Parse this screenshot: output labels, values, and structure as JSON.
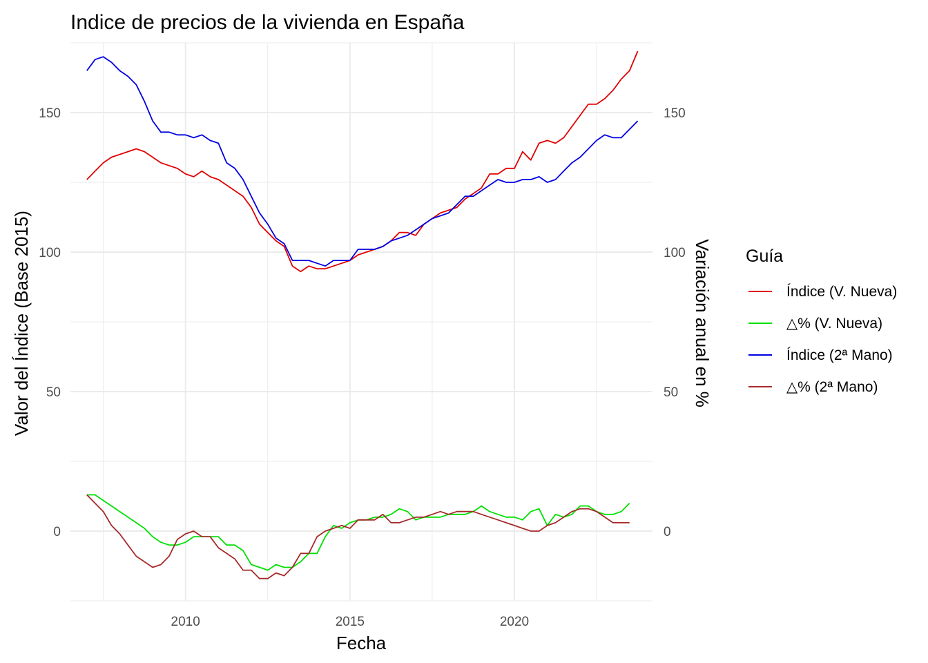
{
  "chart_data": {
    "type": "line",
    "title": "Indice de precios de la vivienda en España",
    "xlabel": "Fecha",
    "ylabel": "Valor del Índice (Base 2015)",
    "y2label": "Variación anual en %",
    "xlim": [
      2006.5,
      2024.2
    ],
    "ylim": [
      -25,
      175
    ],
    "x_ticks": [
      2010,
      2015,
      2020
    ],
    "y_ticks": [
      0,
      50,
      100,
      150
    ],
    "y2_ticks": [
      0,
      50,
      100,
      150
    ],
    "grid": true,
    "legend": {
      "title": "Guía",
      "position": "right"
    },
    "series": [
      {
        "name": "Índice (V. Nueva)",
        "color": "#e00000",
        "points": [
          [
            2007.0,
            126
          ],
          [
            2007.25,
            129
          ],
          [
            2007.5,
            132
          ],
          [
            2007.75,
            134
          ],
          [
            2008.0,
            135
          ],
          [
            2008.25,
            136
          ],
          [
            2008.5,
            137
          ],
          [
            2008.75,
            136
          ],
          [
            2009.0,
            134
          ],
          [
            2009.25,
            132
          ],
          [
            2009.5,
            131
          ],
          [
            2009.75,
            130
          ],
          [
            2010.0,
            128
          ],
          [
            2010.25,
            127
          ],
          [
            2010.5,
            129
          ],
          [
            2010.75,
            127
          ],
          [
            2011.0,
            126
          ],
          [
            2011.25,
            124
          ],
          [
            2011.5,
            122
          ],
          [
            2011.75,
            120
          ],
          [
            2012.0,
            116
          ],
          [
            2012.25,
            110
          ],
          [
            2012.5,
            107
          ],
          [
            2012.75,
            104
          ],
          [
            2013.0,
            102
          ],
          [
            2013.25,
            95
          ],
          [
            2013.5,
            93
          ],
          [
            2013.75,
            95
          ],
          [
            2014.0,
            94
          ],
          [
            2014.25,
            94
          ],
          [
            2014.5,
            95
          ],
          [
            2014.75,
            96
          ],
          [
            2015.0,
            97
          ],
          [
            2015.25,
            99
          ],
          [
            2015.5,
            100
          ],
          [
            2015.75,
            101
          ],
          [
            2016.0,
            102
          ],
          [
            2016.25,
            104
          ],
          [
            2016.5,
            107
          ],
          [
            2016.75,
            107
          ],
          [
            2017.0,
            106
          ],
          [
            2017.25,
            110
          ],
          [
            2017.5,
            112
          ],
          [
            2017.75,
            114
          ],
          [
            2018.0,
            115
          ],
          [
            2018.25,
            116
          ],
          [
            2018.5,
            119
          ],
          [
            2018.75,
            121
          ],
          [
            2019.0,
            123
          ],
          [
            2019.25,
            128
          ],
          [
            2019.5,
            128
          ],
          [
            2019.75,
            130
          ],
          [
            2020.0,
            130
          ],
          [
            2020.25,
            136
          ],
          [
            2020.5,
            133
          ],
          [
            2020.75,
            139
          ],
          [
            2021.0,
            140
          ],
          [
            2021.25,
            139
          ],
          [
            2021.5,
            141
          ],
          [
            2021.75,
            145
          ],
          [
            2022.0,
            149
          ],
          [
            2022.25,
            153
          ],
          [
            2022.5,
            153
          ],
          [
            2022.75,
            155
          ],
          [
            2023.0,
            158
          ],
          [
            2023.25,
            162
          ],
          [
            2023.5,
            165
          ],
          [
            2023.75,
            172
          ]
        ]
      },
      {
        "name": "△% (V. Nueva)",
        "color": "#00e000",
        "points": [
          [
            2007.0,
            13
          ],
          [
            2007.25,
            13
          ],
          [
            2007.5,
            11
          ],
          [
            2007.75,
            9
          ],
          [
            2008.0,
            7
          ],
          [
            2008.25,
            5
          ],
          [
            2008.5,
            3
          ],
          [
            2008.75,
            1
          ],
          [
            2009.0,
            -2
          ],
          [
            2009.25,
            -4
          ],
          [
            2009.5,
            -5
          ],
          [
            2009.75,
            -5
          ],
          [
            2010.0,
            -4
          ],
          [
            2010.25,
            -2
          ],
          [
            2010.5,
            -2
          ],
          [
            2010.75,
            -2
          ],
          [
            2011.0,
            -2
          ],
          [
            2011.25,
            -5
          ],
          [
            2011.5,
            -5
          ],
          [
            2011.75,
            -7
          ],
          [
            2012.0,
            -12
          ],
          [
            2012.25,
            -13
          ],
          [
            2012.5,
            -14
          ],
          [
            2012.75,
            -12
          ],
          [
            2013.0,
            -13
          ],
          [
            2013.25,
            -13
          ],
          [
            2013.5,
            -11
          ],
          [
            2013.75,
            -8
          ],
          [
            2014.0,
            -8
          ],
          [
            2014.25,
            -2
          ],
          [
            2014.5,
            2
          ],
          [
            2014.75,
            1
          ],
          [
            2015.0,
            3
          ],
          [
            2015.25,
            4
          ],
          [
            2015.5,
            4
          ],
          [
            2015.75,
            5
          ],
          [
            2016.0,
            5
          ],
          [
            2016.25,
            6
          ],
          [
            2016.5,
            8
          ],
          [
            2016.75,
            7
          ],
          [
            2017.0,
            4
          ],
          [
            2017.25,
            5
          ],
          [
            2017.5,
            5
          ],
          [
            2017.75,
            5
          ],
          [
            2018.0,
            6
          ],
          [
            2018.25,
            6
          ],
          [
            2018.5,
            6
          ],
          [
            2018.75,
            7
          ],
          [
            2019.0,
            9
          ],
          [
            2019.25,
            7
          ],
          [
            2019.5,
            6
          ],
          [
            2019.75,
            5
          ],
          [
            2020.0,
            5
          ],
          [
            2020.25,
            4
          ],
          [
            2020.5,
            7
          ],
          [
            2020.75,
            8
          ],
          [
            2021.0,
            2
          ],
          [
            2021.25,
            6
          ],
          [
            2021.5,
            5
          ],
          [
            2021.75,
            6
          ],
          [
            2022.0,
            9
          ],
          [
            2022.25,
            9
          ],
          [
            2022.5,
            7
          ],
          [
            2022.75,
            6
          ],
          [
            2023.0,
            6
          ],
          [
            2023.25,
            7
          ],
          [
            2023.5,
            10
          ]
        ]
      },
      {
        "name": "Índice (2ª Mano)",
        "color": "#0000e0",
        "points": [
          [
            2007.0,
            165
          ],
          [
            2007.25,
            169
          ],
          [
            2007.5,
            170
          ],
          [
            2007.75,
            168
          ],
          [
            2008.0,
            165
          ],
          [
            2008.25,
            163
          ],
          [
            2008.5,
            160
          ],
          [
            2008.75,
            154
          ],
          [
            2009.0,
            147
          ],
          [
            2009.25,
            143
          ],
          [
            2009.5,
            143
          ],
          [
            2009.75,
            142
          ],
          [
            2010.0,
            142
          ],
          [
            2010.25,
            141
          ],
          [
            2010.5,
            142
          ],
          [
            2010.75,
            140
          ],
          [
            2011.0,
            139
          ],
          [
            2011.25,
            132
          ],
          [
            2011.5,
            130
          ],
          [
            2011.75,
            126
          ],
          [
            2012.0,
            120
          ],
          [
            2012.25,
            114
          ],
          [
            2012.5,
            110
          ],
          [
            2012.75,
            105
          ],
          [
            2013.0,
            103
          ],
          [
            2013.25,
            97
          ],
          [
            2013.5,
            97
          ],
          [
            2013.75,
            97
          ],
          [
            2014.0,
            96
          ],
          [
            2014.25,
            95
          ],
          [
            2014.5,
            97
          ],
          [
            2014.75,
            97
          ],
          [
            2015.0,
            97
          ],
          [
            2015.25,
            101
          ],
          [
            2015.5,
            101
          ],
          [
            2015.75,
            101
          ],
          [
            2016.0,
            102
          ],
          [
            2016.25,
            104
          ],
          [
            2016.5,
            105
          ],
          [
            2016.75,
            106
          ],
          [
            2017.0,
            108
          ],
          [
            2017.25,
            110
          ],
          [
            2017.5,
            112
          ],
          [
            2017.75,
            113
          ],
          [
            2018.0,
            114
          ],
          [
            2018.25,
            117
          ],
          [
            2018.5,
            120
          ],
          [
            2018.75,
            120
          ],
          [
            2019.0,
            122
          ],
          [
            2019.25,
            124
          ],
          [
            2019.5,
            126
          ],
          [
            2019.75,
            125
          ],
          [
            2020.0,
            125
          ],
          [
            2020.25,
            126
          ],
          [
            2020.5,
            126
          ],
          [
            2020.75,
            127
          ],
          [
            2021.0,
            125
          ],
          [
            2021.25,
            126
          ],
          [
            2021.5,
            129
          ],
          [
            2021.75,
            132
          ],
          [
            2022.0,
            134
          ],
          [
            2022.25,
            137
          ],
          [
            2022.5,
            140
          ],
          [
            2022.75,
            142
          ],
          [
            2023.0,
            141
          ],
          [
            2023.25,
            141
          ],
          [
            2023.5,
            144
          ],
          [
            2023.75,
            147
          ]
        ]
      },
      {
        "name": "△% (2ª Mano)",
        "color": "#a52a2a",
        "points": [
          [
            2007.0,
            13
          ],
          [
            2007.25,
            10
          ],
          [
            2007.5,
            7
          ],
          [
            2007.75,
            2
          ],
          [
            2008.0,
            -1
          ],
          [
            2008.25,
            -5
          ],
          [
            2008.5,
            -9
          ],
          [
            2008.75,
            -11
          ],
          [
            2009.0,
            -13
          ],
          [
            2009.25,
            -12
          ],
          [
            2009.5,
            -9
          ],
          [
            2009.75,
            -3
          ],
          [
            2010.0,
            -1
          ],
          [
            2010.25,
            0
          ],
          [
            2010.5,
            -2
          ],
          [
            2010.75,
            -2
          ],
          [
            2011.0,
            -6
          ],
          [
            2011.25,
            -8
          ],
          [
            2011.5,
            -10
          ],
          [
            2011.75,
            -14
          ],
          [
            2012.0,
            -14
          ],
          [
            2012.25,
            -17
          ],
          [
            2012.5,
            -17
          ],
          [
            2012.75,
            -15
          ],
          [
            2013.0,
            -16
          ],
          [
            2013.25,
            -13
          ],
          [
            2013.5,
            -8
          ],
          [
            2013.75,
            -8
          ],
          [
            2014.0,
            -2
          ],
          [
            2014.25,
            0
          ],
          [
            2014.5,
            1
          ],
          [
            2014.75,
            2
          ],
          [
            2015.0,
            1
          ],
          [
            2015.25,
            4
          ],
          [
            2015.5,
            4
          ],
          [
            2015.75,
            4
          ],
          [
            2016.0,
            6
          ],
          [
            2016.25,
            3
          ],
          [
            2016.5,
            3
          ],
          [
            2016.75,
            4
          ],
          [
            2017.0,
            5
          ],
          [
            2017.25,
            5
          ],
          [
            2017.5,
            6
          ],
          [
            2017.75,
            7
          ],
          [
            2018.0,
            6
          ],
          [
            2018.25,
            7
          ],
          [
            2018.5,
            7
          ],
          [
            2018.75,
            7
          ],
          [
            2019.0,
            6
          ],
          [
            2019.25,
            5
          ],
          [
            2019.5,
            4
          ],
          [
            2019.75,
            3
          ],
          [
            2020.0,
            2
          ],
          [
            2020.25,
            1
          ],
          [
            2020.5,
            0
          ],
          [
            2020.75,
            0
          ],
          [
            2021.0,
            2
          ],
          [
            2021.25,
            3
          ],
          [
            2021.5,
            5
          ],
          [
            2021.75,
            7
          ],
          [
            2022.0,
            8
          ],
          [
            2022.25,
            8
          ],
          [
            2022.5,
            7
          ],
          [
            2022.75,
            5
          ],
          [
            2023.0,
            3
          ],
          [
            2023.25,
            3
          ],
          [
            2023.5,
            3
          ]
        ]
      }
    ]
  }
}
